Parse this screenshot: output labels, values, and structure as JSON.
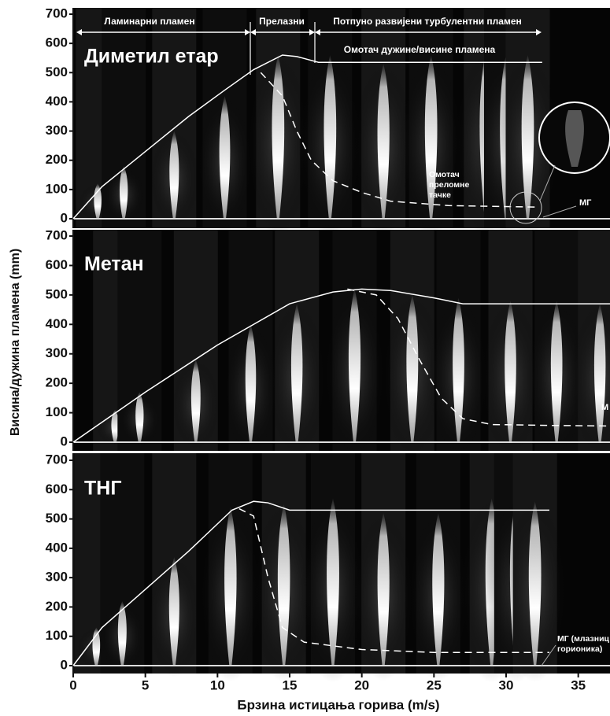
{
  "chart_data": [
    {
      "type": "line",
      "title": "Диметил етар",
      "xlim": [
        0,
        37.2
      ],
      "ylim": [
        0,
        700
      ],
      "yticks": [
        0,
        100,
        200,
        300,
        400,
        500,
        600,
        700
      ],
      "series": [
        {
          "style": "solid",
          "color": "#ffffff",
          "x": [
            0,
            2,
            5,
            8,
            10.5,
            12.5,
            14.5,
            15.5,
            17,
            32.5
          ],
          "values": [
            0,
            110,
            230,
            350,
            440,
            510,
            560,
            555,
            535,
            535
          ]
        },
        {
          "style": "dashed",
          "color": "#ffffff",
          "x": [
            13,
            14.5,
            15.5,
            16.5,
            18,
            20,
            22,
            26,
            32
          ],
          "values": [
            500,
            420,
            300,
            200,
            130,
            90,
            60,
            45,
            40
          ]
        }
      ],
      "annotations": [
        {
          "text": "Ламинарни пламен"
        },
        {
          "text": "Прелазни"
        },
        {
          "text": "Потпуно развијени турбулентни пламен"
        },
        {
          "text": "Омотач дужине/висине пламена"
        },
        {
          "lines": [
            "Омотач",
            "преломне",
            "тачке"
          ]
        },
        {
          "text": "МГ"
        }
      ]
    },
    {
      "type": "line",
      "title": "Метан",
      "ylabel": "Висина/дужина пламена (mm)",
      "xlim": [
        0,
        37.2
      ],
      "ylim": [
        0,
        700
      ],
      "yticks": [
        0,
        100,
        200,
        300,
        400,
        500,
        600,
        700
      ],
      "series": [
        {
          "style": "solid",
          "color": "#ffffff",
          "x": [
            0,
            5,
            10,
            15,
            18,
            20,
            22,
            25,
            27,
            37.2
          ],
          "values": [
            0,
            170,
            330,
            470,
            510,
            520,
            515,
            490,
            470,
            470
          ]
        },
        {
          "style": "dashed",
          "color": "#ffffff",
          "x": [
            19,
            21,
            22.5,
            24,
            25.5,
            27,
            29,
            33,
            37.2
          ],
          "values": [
            520,
            500,
            420,
            280,
            150,
            80,
            60,
            57,
            55
          ]
        }
      ],
      "annotations": [
        {
          "text": "М"
        }
      ]
    },
    {
      "type": "line",
      "title": "ТНГ",
      "xlabel": "Брзина истицања горива (m/s)",
      "xlim": [
        0,
        37.2
      ],
      "ylim": [
        0,
        700
      ],
      "yticks": [
        0,
        100,
        200,
        300,
        400,
        500,
        600,
        700
      ],
      "xticks": [
        0,
        5,
        10,
        15,
        20,
        25,
        30,
        35
      ],
      "series": [
        {
          "style": "solid",
          "color": "#ffffff",
          "x": [
            0,
            2,
            5,
            8,
            11,
            12.5,
            13.5,
            15,
            33
          ],
          "values": [
            0,
            130,
            260,
            390,
            530,
            560,
            555,
            530,
            530
          ]
        },
        {
          "style": "dashed",
          "color": "#ffffff",
          "x": [
            11.5,
            12.5,
            13.5,
            14.5,
            16,
            20,
            25,
            33
          ],
          "values": [
            535,
            510,
            300,
            130,
            80,
            55,
            45,
            45
          ]
        }
      ],
      "annotations": [
        {
          "lines": [
            "МГ (млазниц",
            "горионика)"
          ]
        }
      ]
    }
  ]
}
